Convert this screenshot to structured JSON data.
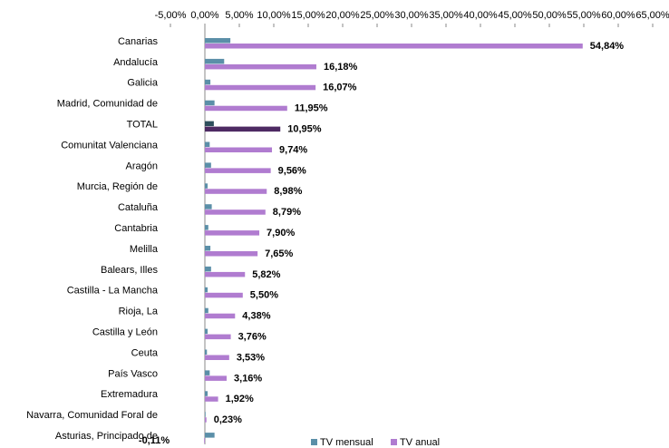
{
  "chart_data": {
    "type": "hbar",
    "categories": [
      "Canarias",
      "Andalucía",
      "Galicia",
      "Madrid, Comunidad de",
      "TOTAL",
      "Comunitat Valenciana",
      "Aragón",
      "Murcia, Región de",
      "Cataluña",
      "Cantabria",
      "Melilla",
      "Balears, Illes",
      "Castilla - La Mancha",
      "Rioja, La",
      "Castilla y León",
      "Ceuta",
      "País Vasco",
      "Extremadura",
      "Navarra, Comunidad Foral de",
      "Asturias, Principado de"
    ],
    "series": [
      {
        "name": "TV mensual",
        "color": "#5b8fa8",
        "highlight_color": "#2e4f5c",
        "values": [
          3.7,
          2.8,
          0.8,
          1.4,
          1.3,
          0.7,
          0.9,
          0.4,
          1.0,
          0.5,
          0.8,
          0.9,
          0.4,
          0.5,
          0.4,
          0.3,
          0.7,
          0.4,
          0.1,
          1.4
        ]
      },
      {
        "name": "TV anual",
        "color": "#b07cd0",
        "highlight_color": "#4e2a63",
        "values": [
          54.84,
          16.18,
          16.07,
          11.95,
          10.95,
          9.74,
          9.56,
          8.98,
          8.79,
          7.9,
          7.65,
          5.82,
          5.5,
          4.38,
          3.76,
          3.53,
          3.16,
          1.92,
          0.23,
          -0.11
        ],
        "value_labels": [
          "54,84%",
          "16,18%",
          "16,07%",
          "11,95%",
          "10,95%",
          "9,74%",
          "9,56%",
          "8,98%",
          "8,79%",
          "7,90%",
          "7,65%",
          "5,82%",
          "5,50%",
          "4,38%",
          "3,76%",
          "3,53%",
          "3,16%",
          "1,92%",
          "0,23%",
          "-0,11%"
        ]
      }
    ],
    "highlight_index": 4,
    "xlim": [
      -5,
      65
    ],
    "xticks": [
      {
        "value": -5,
        "label": "-5,00%"
      },
      {
        "value": 0,
        "label": "0,00%"
      },
      {
        "value": 5,
        "label": "5,00%"
      },
      {
        "value": 10,
        "label": "10,00%"
      },
      {
        "value": 15,
        "label": "15,00%"
      },
      {
        "value": 20,
        "label": "20,00%"
      },
      {
        "value": 25,
        "label": "25,00%"
      },
      {
        "value": 30,
        "label": "30,00%"
      },
      {
        "value": 35,
        "label": "35,00%"
      },
      {
        "value": 40,
        "label": "40,00%"
      },
      {
        "value": 45,
        "label": "45,00%"
      },
      {
        "value": 50,
        "label": "50,00%"
      },
      {
        "value": 55,
        "label": "55,00%"
      },
      {
        "value": 60,
        "label": "60,00%"
      },
      {
        "value": 65,
        "label": "65,00%"
      }
    ],
    "legend": "bottom"
  }
}
